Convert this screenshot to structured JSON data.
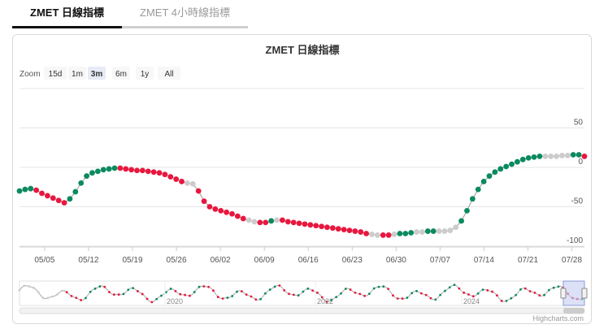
{
  "tabs": [
    {
      "label": "ZMET 日線指標",
      "active": true
    },
    {
      "label": "ZMET 4小時線指標",
      "active": false
    }
  ],
  "zoom": {
    "label": "Zoom",
    "options": [
      "15d",
      "1m",
      "3m",
      "6m",
      "1y",
      "All"
    ],
    "selected": "3m"
  },
  "credit": "Highcharts.com",
  "colors": {
    "up": "#0a8a5f",
    "down": "#e8173f",
    "neutral": "#cccccc",
    "line": "#9a9a9a",
    "navigator_mask": "#c5cdf2"
  },
  "chart_data": {
    "type": "line",
    "title": "ZMET 日線指標",
    "x_tick_labels": [
      "05/05",
      "05/12",
      "05/19",
      "05/26",
      "06/02",
      "06/09",
      "06/16",
      "06/23",
      "06/30",
      "07/07",
      "07/14",
      "07/21",
      "07/28"
    ],
    "y_tick_labels": [
      "50",
      "0",
      "-50",
      "-100"
    ],
    "ylim": [
      -100,
      100
    ],
    "grid": true,
    "x_start": "2024-05-01",
    "x_end": "2024-07-30",
    "series": [
      {
        "values": [
          -30,
          -28,
          -27,
          -29,
          -33,
          -36,
          -39,
          -42,
          -45,
          -40,
          -31,
          -20,
          -11,
          -7,
          -5,
          -3,
          -2,
          -1,
          -1,
          -2,
          -3,
          -4,
          -4,
          -5,
          -6,
          -7,
          -9,
          -12,
          -15,
          -18,
          -20,
          -21,
          -30,
          -43,
          -50,
          -53,
          -55,
          -57,
          -59,
          -62,
          -65,
          -67,
          -69,
          -70,
          -70,
          -68,
          -67,
          -67,
          -69,
          -70,
          -71,
          -72,
          -73,
          -74,
          -75,
          -76,
          -77,
          -78,
          -79,
          -80,
          -81,
          -82,
          -84,
          -85,
          -86,
          -86,
          -86,
          -85,
          -84,
          -84,
          -83,
          -82,
          -82,
          -81,
          -81,
          -81,
          -81,
          -80,
          -76,
          -68,
          -55,
          -40,
          -28,
          -18,
          -11,
          -6,
          -2,
          1,
          4,
          7,
          10,
          12,
          13,
          14,
          14,
          14,
          14,
          15,
          15,
          16,
          16,
          14
        ],
        "signals": [
          "up",
          "up",
          "up",
          "down",
          "down",
          "down",
          "down",
          "down",
          "down",
          "up",
          "up",
          "up",
          "up",
          "up",
          "up",
          "up",
          "up",
          "up",
          "down",
          "down",
          "down",
          "down",
          "down",
          "down",
          "down",
          "down",
          "down",
          "down",
          "down",
          "down",
          "neutral",
          "neutral",
          "down",
          "down",
          "down",
          "down",
          "down",
          "down",
          "down",
          "down",
          "down",
          "neutral",
          "neutral",
          "down",
          "down",
          "up",
          "neutral",
          "down",
          "down",
          "down",
          "down",
          "down",
          "down",
          "down",
          "down",
          "down",
          "down",
          "down",
          "down",
          "down",
          "down",
          "down",
          "down",
          "neutral",
          "neutral",
          "down",
          "down",
          "neutral",
          "up",
          "up",
          "up",
          "neutral",
          "neutral",
          "up",
          "up",
          "neutral",
          "neutral",
          "neutral",
          "neutral",
          "up",
          "up",
          "up",
          "up",
          "up",
          "up",
          "up",
          "up",
          "up",
          "up",
          "up",
          "up",
          "up",
          "up",
          "up",
          "neutral",
          "neutral",
          "neutral",
          "neutral",
          "neutral",
          "up",
          "up",
          "down"
        ]
      }
    ],
    "navigator": {
      "x_labels": [
        "2020",
        "2022",
        "2024"
      ],
      "selected_range": "last 3 months"
    }
  }
}
